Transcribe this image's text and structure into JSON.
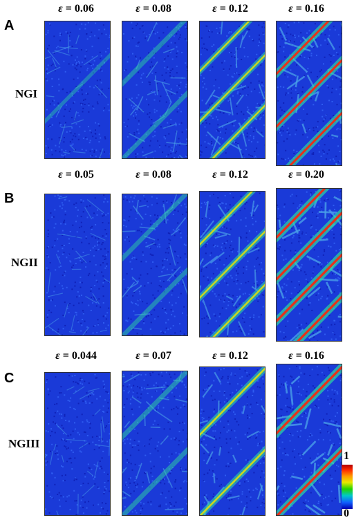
{
  "rows": [
    {
      "letter": "A",
      "label": "NGI",
      "panels": [
        {
          "strain": "0.06"
        },
        {
          "strain": "0.08"
        },
        {
          "strain": "0.12"
        },
        {
          "strain": "0.16"
        }
      ]
    },
    {
      "letter": "B",
      "label": "NGII",
      "panels": [
        {
          "strain": "0.05"
        },
        {
          "strain": "0.08"
        },
        {
          "strain": "0.12"
        },
        {
          "strain": "0.20"
        }
      ]
    },
    {
      "letter": "C",
      "label": "NGIII",
      "panels": [
        {
          "strain": "0.044"
        },
        {
          "strain": "0.07"
        },
        {
          "strain": "0.12"
        },
        {
          "strain": "0.16"
        }
      ]
    }
  ],
  "strain_symbol": "ε",
  "strain_equals": " = ",
  "colorbar": {
    "max_label": "1",
    "min_label": "0",
    "colors": [
      "#b00000",
      "#ff2a00",
      "#ff9a00",
      "#e8e800",
      "#22d400",
      "#00c8c8",
      "#1060ff",
      "#0000b0"
    ]
  }
}
